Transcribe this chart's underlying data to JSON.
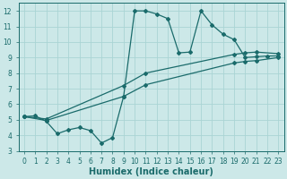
{
  "bg_color": "#cce8e8",
  "line_color": "#1a6b6b",
  "grid_color": "#aad4d4",
  "xlabel": "Humidex (Indice chaleur)",
  "ylim": [
    3,
    12.5
  ],
  "xlim": [
    -0.5,
    23.5
  ],
  "yticks": [
    3,
    4,
    5,
    6,
    7,
    8,
    9,
    10,
    11,
    12
  ],
  "xticks": [
    0,
    1,
    2,
    3,
    4,
    5,
    6,
    7,
    8,
    9,
    10,
    11,
    12,
    13,
    14,
    15,
    16,
    17,
    18,
    19,
    20,
    21,
    22,
    23
  ],
  "line1_x": [
    0,
    1,
    2,
    3,
    4,
    5,
    6,
    7,
    8,
    9,
    10,
    11,
    12,
    13,
    14,
    15,
    16,
    17,
    18,
    19,
    20,
    21,
    22,
    23
  ],
  "line1_y": [
    5.2,
    5.25,
    4.9,
    4.1,
    4.35,
    4.5,
    4.3,
    3.5,
    3.85,
    6.5,
    12.0,
    12.0,
    11.8,
    11.5,
    9.3,
    9.35,
    12.0,
    11.1,
    10.5,
    10.15,
    9.0,
    9.05,
    9.1,
    9.1
  ],
  "line2_x": [
    0,
    2,
    9,
    11,
    19,
    20,
    21,
    23
  ],
  "line2_y": [
    5.2,
    5.05,
    7.2,
    8.0,
    9.2,
    9.3,
    9.35,
    9.25
  ],
  "line3_x": [
    0,
    2,
    9,
    11,
    19,
    20,
    21,
    23
  ],
  "line3_y": [
    5.2,
    4.95,
    6.5,
    7.25,
    8.65,
    8.75,
    8.8,
    9.0
  ],
  "tick_fontsize": 5.5,
  "xlabel_fontsize": 7,
  "xlabel_fontweight": "bold"
}
